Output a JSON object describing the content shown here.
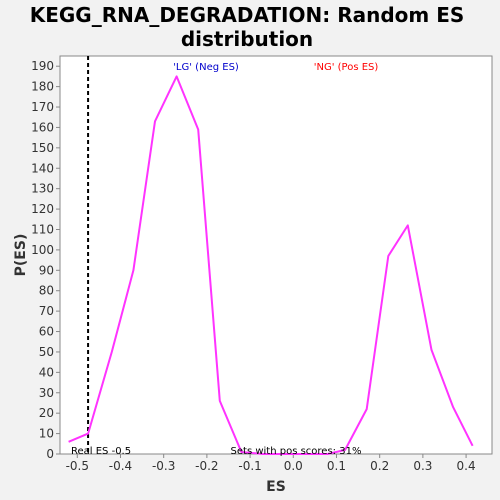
{
  "chart_data": {
    "type": "line",
    "title_lines": [
      "KEGG_RNA_DEGRADATION: Random ES",
      "distribution"
    ],
    "xlabel": "ES",
    "ylabel": "P(ES)",
    "xlim": [
      -0.54,
      0.46
    ],
    "ylim": [
      0,
      195
    ],
    "x_ticks": [
      "-0.5",
      "-0.4",
      "-0.3",
      "-0.2",
      "-0.1",
      "0.0",
      "0.1",
      "0.2",
      "0.3",
      "0.4"
    ],
    "y_ticks": [
      "0",
      "10",
      "20",
      "30",
      "40",
      "50",
      "60",
      "70",
      "80",
      "90",
      "100",
      "110",
      "120",
      "130",
      "140",
      "150",
      "160",
      "170",
      "180",
      "190"
    ],
    "grid": false,
    "series": [
      {
        "color": "#ff33ff",
        "x": [
          -0.52,
          -0.475,
          -0.42,
          -0.37,
          -0.32,
          -0.27,
          -0.22,
          -0.17,
          -0.12,
          -0.07,
          -0.02,
          0.03,
          0.08,
          0.12,
          0.17,
          0.22,
          0.265,
          0.32,
          0.37,
          0.415
        ],
        "y": [
          6,
          10,
          50,
          90,
          163,
          185,
          159,
          26,
          1,
          0,
          0,
          0,
          0,
          2,
          22,
          97,
          112,
          51,
          23,
          4
        ]
      }
    ],
    "real_es_line": {
      "x": -0.475,
      "color": "#000000"
    },
    "annotations": {
      "neg": "'LG' (Neg ES)",
      "pos": "'NG' (Pos ES)",
      "real_es": "Real ES -0.5",
      "pos_scores": "Sets with pos scores: 31%"
    }
  }
}
